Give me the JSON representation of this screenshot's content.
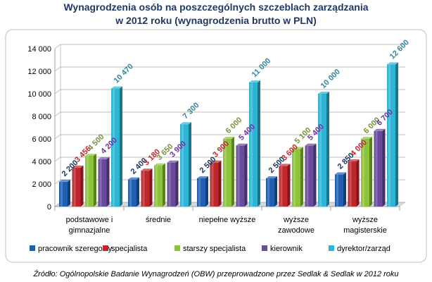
{
  "chart_data": {
    "type": "bar",
    "title_line1": "Wynagrodzenia osób na poszczególnych szczeblach zarządzania",
    "title_line2": "w 2012 roku (wynagrodzenia brutto w PLN)",
    "categories": [
      [
        "podstawowe i",
        "gimnazjalne"
      ],
      [
        "średnie"
      ],
      [
        "niepełne wyższe"
      ],
      [
        "wyższe",
        "zawodowe"
      ],
      [
        "wyższe",
        "magisterskie"
      ]
    ],
    "series": [
      {
        "name": "pracownik szeregowy",
        "color": "#1f5fb4",
        "label_color": "#17375e",
        "values": [
          2200,
          2400,
          2500,
          2500,
          2850
        ],
        "labels": [
          "2 200",
          "2 400",
          "2 500",
          "2 500",
          "2 850"
        ]
      },
      {
        "name": "specjalista",
        "color": "#c0272d",
        "label_color": "#c0272d",
        "values": [
          3456,
          3180,
          3900,
          3600,
          4000
        ],
        "labels": [
          "3 456",
          "3 180",
          "3 900",
          "3 600",
          "4 000"
        ]
      },
      {
        "name": "starszy specjalista",
        "color": "#8dc33c",
        "label_color": "#76923c",
        "values": [
          4500,
          3650,
          6000,
          5100,
          6000
        ],
        "labels": [
          "4 500",
          "3 650",
          "6 000",
          "5 100",
          "6 000"
        ]
      },
      {
        "name": "kierownik",
        "color": "#6a4a9c",
        "label_color": "#7030a0",
        "values": [
          4200,
          3900,
          5400,
          5400,
          6700
        ],
        "labels": [
          "4 200",
          "3 900",
          "5 400",
          "5 400",
          "6 700"
        ]
      },
      {
        "name": "dyrektor/zarząd",
        "color": "#2bb5d6",
        "label_color": "#31859c",
        "values": [
          10470,
          7300,
          11000,
          10000,
          12600
        ],
        "labels": [
          "10 470",
          "7 300",
          "11 000",
          "10 000",
          "12 600"
        ]
      }
    ],
    "y_ticks": [
      0,
      2000,
      4000,
      6000,
      8000,
      10000,
      12000,
      14000
    ],
    "y_tick_labels": [
      "0",
      "2 000",
      "4 000",
      "6 000",
      "8 000",
      "10 000",
      "12 000",
      "14 000"
    ],
    "ylim": [
      0,
      14000
    ],
    "grid": true,
    "legend_position": "bottom",
    "source": "Źródło: Ogólnopolskie Badanie Wynagrodzeń (OBW) przeprowadzone przez Sedlak & Sedlak w 2012 roku"
  }
}
